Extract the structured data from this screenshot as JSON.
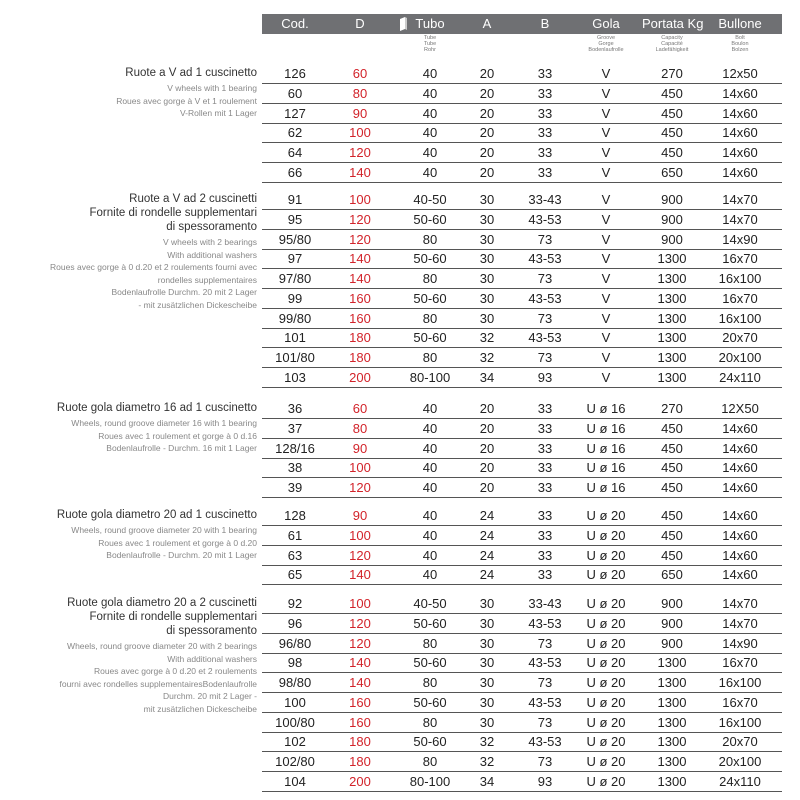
{
  "header": {
    "columns": [
      {
        "label": "Cod."
      },
      {
        "label": "D"
      },
      {
        "label": "Tubo",
        "sub": [
          "Tube",
          "Tube",
          "Rohr"
        ]
      },
      {
        "label": "A"
      },
      {
        "label": "B"
      },
      {
        "label": "Gola",
        "sub": [
          "Groove",
          "Gorge",
          "Bodenlaufrolle"
        ]
      },
      {
        "label": "Portata Kg",
        "sub": [
          "Capacity",
          "Capacité",
          "Ladefähigkeit"
        ]
      },
      {
        "label": "Bullone",
        "sub": [
          "Bolt",
          "Boulon",
          "Bolzen"
        ]
      }
    ]
  },
  "groups": [
    {
      "title": [
        "Ruote a V ad 1 cuscinetto"
      ],
      "notes": [
        "V wheels with 1 bearing",
        "Roues avec gorge à V et 1 roulement",
        "V-Rollen mit 1 Lager"
      ],
      "rows": [
        [
          "126",
          "60",
          "40",
          "20",
          "33",
          "V",
          "270",
          "12x50"
        ],
        [
          "60",
          "80",
          "40",
          "20",
          "33",
          "V",
          "450",
          "14x60"
        ],
        [
          "127",
          "90",
          "40",
          "20",
          "33",
          "V",
          "450",
          "14x60"
        ],
        [
          "62",
          "100",
          "40",
          "20",
          "33",
          "V",
          "450",
          "14x60"
        ],
        [
          "64",
          "120",
          "40",
          "20",
          "33",
          "V",
          "450",
          "14x60"
        ],
        [
          "66",
          "140",
          "40",
          "20",
          "33",
          "V",
          "650",
          "14x60"
        ]
      ]
    },
    {
      "title": [
        "Ruote a V ad 2 cuscinetti",
        "Fornite di rondelle supplementari",
        "di spessoramento"
      ],
      "notes": [
        "V wheels with 2 bearings",
        "With additional washers",
        "Roues avec gorge à 0 d.20 et 2 roulements fourni avec",
        "rondelles supplementaires",
        "Bodenlaufrolle Durchm. 20 mit 2 Lager",
        "- mit zusätzlichen Dickescheibe"
      ],
      "rows": [
        [
          "91",
          "100",
          "40-50",
          "30",
          "33-43",
          "V",
          "900",
          "14x70"
        ],
        [
          "95",
          "120",
          "50-60",
          "30",
          "43-53",
          "V",
          "900",
          "14x70"
        ],
        [
          "95/80",
          "120",
          "80",
          "30",
          "73",
          "V",
          "900",
          "14x90"
        ],
        [
          "97",
          "140",
          "50-60",
          "30",
          "43-53",
          "V",
          "1300",
          "16x70"
        ],
        [
          "97/80",
          "140",
          "80",
          "30",
          "73",
          "V",
          "1300",
          "16x100"
        ],
        [
          "99",
          "160",
          "50-60",
          "30",
          "43-53",
          "V",
          "1300",
          "16x70"
        ],
        [
          "99/80",
          "160",
          "80",
          "30",
          "73",
          "V",
          "1300",
          "16x100"
        ],
        [
          "101",
          "180",
          "50-60",
          "32",
          "43-53",
          "V",
          "1300",
          "20x70"
        ],
        [
          "101/80",
          "180",
          "80",
          "32",
          "73",
          "V",
          "1300",
          "20x100"
        ],
        [
          "103",
          "200",
          "80-100",
          "34",
          "93",
          "V",
          "1300",
          "24x110"
        ]
      ]
    },
    {
      "title": [
        "Ruote gola diametro 16 ad 1 cuscinetto"
      ],
      "notes": [
        "Wheels, round groove diameter 16 with 1 bearing",
        "Roues avec 1 roulement et gorge à 0 d.16",
        "Bodenlaufrolle - Durchm. 16 mit 1 Lager"
      ],
      "rows": [
        [
          "36",
          "60",
          "40",
          "20",
          "33",
          "U ø 16",
          "270",
          "12X50"
        ],
        [
          "37",
          "80",
          "40",
          "20",
          "33",
          "U ø 16",
          "450",
          "14x60"
        ],
        [
          "128/16",
          "90",
          "40",
          "20",
          "33",
          "U ø 16",
          "450",
          "14x60"
        ],
        [
          "38",
          "100",
          "40",
          "20",
          "33",
          "U ø 16",
          "450",
          "14x60"
        ],
        [
          "39",
          "120",
          "40",
          "20",
          "33",
          "U ø 16",
          "450",
          "14x60"
        ]
      ]
    },
    {
      "title": [
        "Ruote gola diametro 20 ad 1 cuscinetto"
      ],
      "notes": [
        "Wheels, round groove diameter 20 with 1 bearing",
        "Roues avec 1 roulement et gorge à 0 d.20",
        "Bodenlaufrolle - Durchm. 20 mit 1 Lager"
      ],
      "rows": [
        [
          "128",
          "90",
          "40",
          "24",
          "33",
          "U ø 20",
          "450",
          "14x60"
        ],
        [
          "61",
          "100",
          "40",
          "24",
          "33",
          "U ø 20",
          "450",
          "14x60"
        ],
        [
          "63",
          "120",
          "40",
          "24",
          "33",
          "U ø 20",
          "450",
          "14x60"
        ],
        [
          "65",
          "140",
          "40",
          "24",
          "33",
          "U ø 20",
          "650",
          "14x60"
        ]
      ]
    },
    {
      "title": [
        "Ruote gola diametro 20 a 2 cuscinetti",
        "Fornite di rondelle supplementari",
        "di spessoramento"
      ],
      "notes": [
        "Wheels, round groove diameter 20 with 2 bearings",
        "With additional washers",
        "Roues avec gorge à 0 d.20 et 2 roulements",
        "fourni avec rondelles supplementairesBodenlaufrolle",
        "Durchm. 20 mit 2 Lager -",
        "mit zusätzlichen Dickescheibe"
      ],
      "rows": [
        [
          "92",
          "100",
          "40-50",
          "30",
          "33-43",
          "U ø 20",
          "900",
          "14x70"
        ],
        [
          "96",
          "120",
          "50-60",
          "30",
          "43-53",
          "U ø 20",
          "900",
          "14x70"
        ],
        [
          "96/80",
          "120",
          "80",
          "30",
          "73",
          "U ø 20",
          "900",
          "14x90"
        ],
        [
          "98",
          "140",
          "50-60",
          "30",
          "43-53",
          "U ø 20",
          "1300",
          "16x70"
        ],
        [
          "98/80",
          "140",
          "80",
          "30",
          "73",
          "U ø 20",
          "1300",
          "16x100"
        ],
        [
          "100",
          "160",
          "50-60",
          "30",
          "43-53",
          "U ø 20",
          "1300",
          "16x70"
        ],
        [
          "100/80",
          "160",
          "80",
          "30",
          "73",
          "U ø 20",
          "1300",
          "16x100"
        ],
        [
          "102",
          "180",
          "50-60",
          "32",
          "43-53",
          "U ø 20",
          "1300",
          "20x70"
        ],
        [
          "102/80",
          "180",
          "80",
          "32",
          "73",
          "U ø 20",
          "1300",
          "20x100"
        ],
        [
          "104",
          "200",
          "80-100",
          "34",
          "93",
          "U ø 20",
          "1300",
          "24x110"
        ]
      ]
    }
  ]
}
